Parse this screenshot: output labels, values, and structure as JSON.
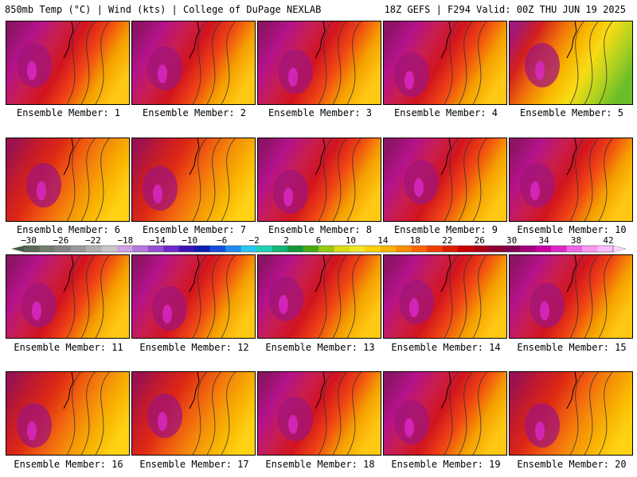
{
  "header": {
    "left": "850mb Temp (°C) | Wind (kts) | College of DuPage NEXLAB",
    "right": "18Z GEFS | F294 Valid: 00Z THU JUN 19 2025"
  },
  "members": [
    {
      "label": "Ensemble Member: 1",
      "pal": "hot"
    },
    {
      "label": "Ensemble Member: 2",
      "pal": "hot"
    },
    {
      "label": "Ensemble Member: 3",
      "pal": "hot"
    },
    {
      "label": "Ensemble Member: 4",
      "pal": "hot"
    },
    {
      "label": "Ensemble Member: 5",
      "pal": "cool"
    },
    {
      "label": "Ensemble Member: 6",
      "pal": "warm"
    },
    {
      "label": "Ensemble Member: 7",
      "pal": "warm"
    },
    {
      "label": "Ensemble Member: 8",
      "pal": "hot"
    },
    {
      "label": "Ensemble Member: 9",
      "pal": "hot"
    },
    {
      "label": "Ensemble Member: 10",
      "pal": "hot"
    },
    {
      "label": "Ensemble Member: 11",
      "pal": "hot"
    },
    {
      "label": "Ensemble Member: 12",
      "pal": "hot"
    },
    {
      "label": "Ensemble Member: 13",
      "pal": "hot"
    },
    {
      "label": "Ensemble Member: 14",
      "pal": "hot"
    },
    {
      "label": "Ensemble Member: 15",
      "pal": "hot"
    },
    {
      "label": "Ensemble Member: 16",
      "pal": "warm"
    },
    {
      "label": "Ensemble Member: 17",
      "pal": "warm"
    },
    {
      "label": "Ensemble Member: 18",
      "pal": "hot"
    },
    {
      "label": "Ensemble Member: 19",
      "pal": "hot"
    },
    {
      "label": "Ensemble Member: 20",
      "pal": "warm"
    }
  ],
  "colorbar": {
    "labels": [
      "−30",
      "−26",
      "−22",
      "−18",
      "−14",
      "−10",
      "−6",
      "−2",
      "2",
      "6",
      "10",
      "14",
      "18",
      "22",
      "26",
      "30",
      "34",
      "38",
      "42"
    ],
    "colors": [
      "#5a6a5a",
      "#6e7e6e",
      "#848484",
      "#9a9a9a",
      "#b0b0b0",
      "#c8c8c8",
      "#d2a0e6",
      "#b478dc",
      "#9650d2",
      "#6e28c8",
      "#3c14b4",
      "#0a1eb4",
      "#1450dc",
      "#1e8cf0",
      "#28c8f0",
      "#20d2b4",
      "#14b478",
      "#14963c",
      "#46aa14",
      "#96c814",
      "#dcdc14",
      "#f0e628",
      "#ffd200",
      "#ffb400",
      "#ff8c00",
      "#ff6400",
      "#f03c00",
      "#dc1e00",
      "#c80000",
      "#aa0014",
      "#8c0032",
      "#820050",
      "#a00078",
      "#c800a0",
      "#dc28c8",
      "#f064e6",
      "#ff96f0",
      "#ffbeff"
    ]
  }
}
